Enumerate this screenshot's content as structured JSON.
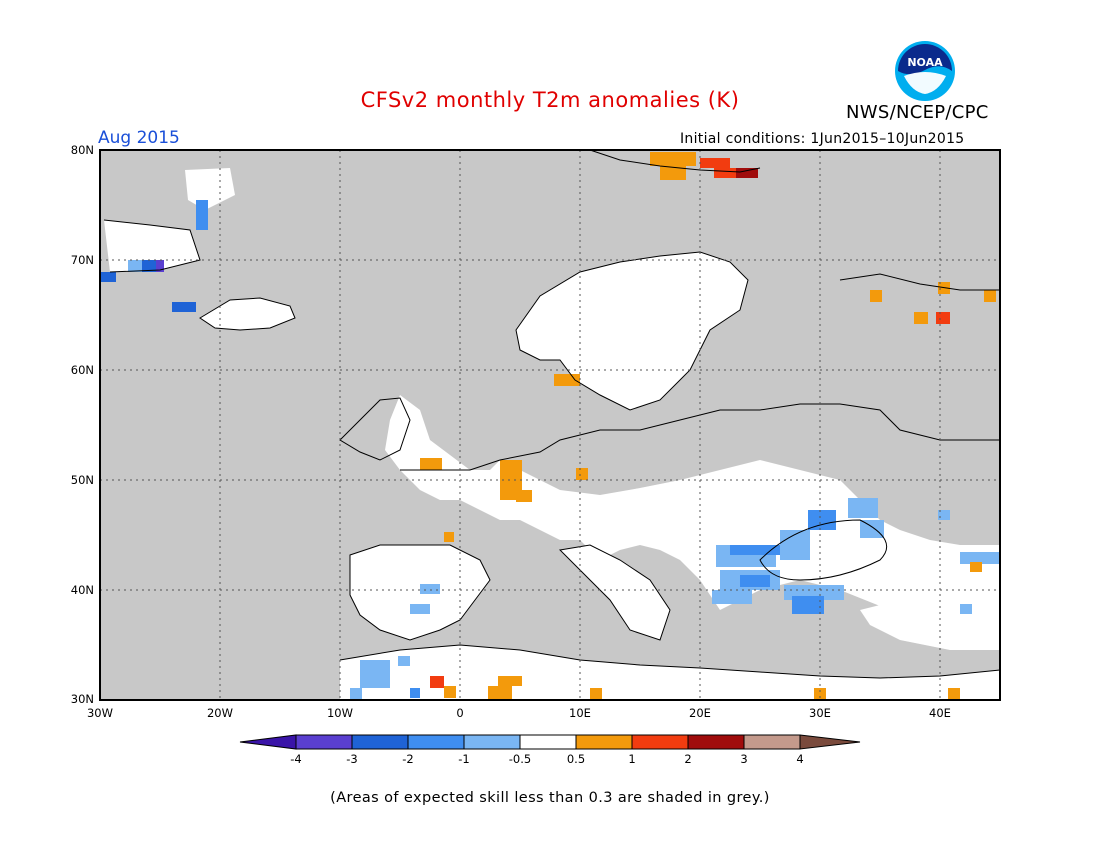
{
  "title": "CFSv2 monthly T2m anomalies (K)",
  "agency": "NWS/NCEP/CPC",
  "logo_text": "NOAA",
  "target_month": "Aug 2015",
  "initial_conditions": "Initial conditions: 1Jun2015–10Jun2015",
  "footnote": "(Areas of expected skill less than 0.3 are shaded in grey.)",
  "map": {
    "lon_range": [
      -30,
      45
    ],
    "lat_range": [
      30,
      80
    ],
    "lat_ticks": [
      "80N",
      "70N",
      "60N",
      "50N",
      "40N",
      "30N"
    ],
    "lon_ticks": [
      "30W",
      "20W",
      "10W",
      "0",
      "10E",
      "20E",
      "30E",
      "40E"
    ],
    "grid": "dotted",
    "land_default": "grey (low skill)",
    "ocean_color": "#c8c8c8"
  },
  "colorbar": {
    "labels": [
      "-4",
      "-3",
      "-2",
      "-1",
      "-0.5",
      "0.5",
      "1",
      "2",
      "3",
      "4"
    ],
    "colors": [
      "#3a14a8",
      "#5a3fd0",
      "#1f63d6",
      "#3f8ef0",
      "#7ab6f3",
      "#ffffff",
      "#f39a0c",
      "#f23c10",
      "#a00c0c",
      "#c49a8c",
      "#7a4a3c"
    ]
  }
}
